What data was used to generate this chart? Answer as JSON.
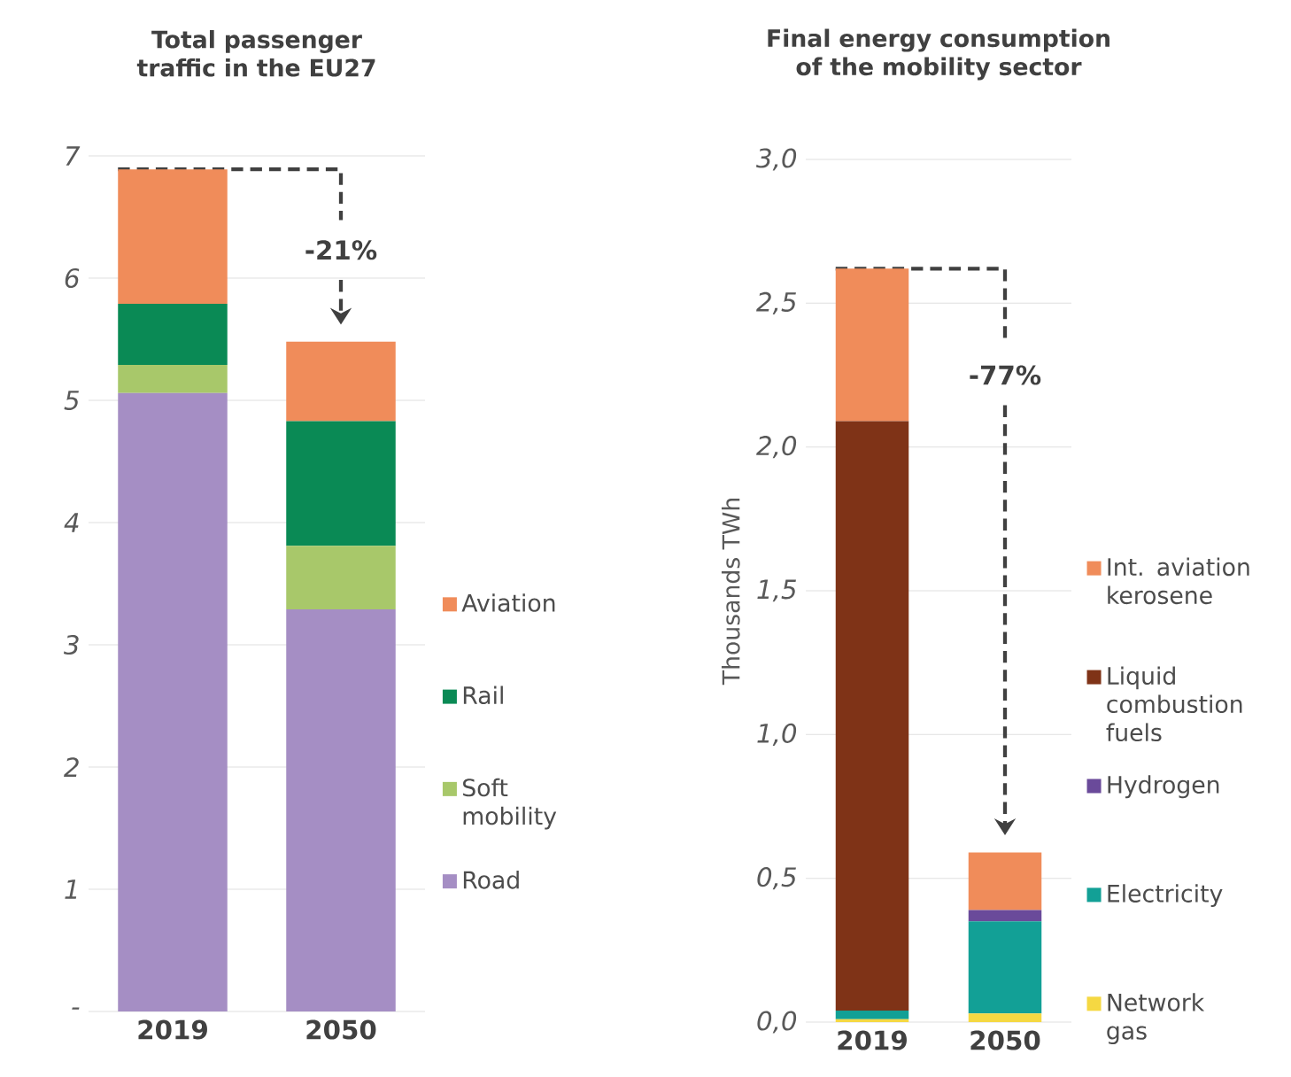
{
  "chart_data": [
    {
      "type": "bar",
      "title": "Total passenger traffic in the EU27",
      "categories": [
        "2019",
        "2050"
      ],
      "stacked": true,
      "series": [
        {
          "name": "Road",
          "color": "#a58ec4",
          "values": [
            5.06,
            3.29
          ]
        },
        {
          "name": "Soft mobility",
          "color": "#a8c86a",
          "values": [
            0.23,
            0.52
          ]
        },
        {
          "name": "Rail",
          "color": "#0a8a55",
          "values": [
            0.5,
            1.02
          ]
        },
        {
          "name": "Aviation",
          "color": "#f08c5a",
          "values": [
            1.1,
            0.65
          ]
        }
      ],
      "ylim": [
        0,
        7
      ],
      "yticks": [
        {
          "value": 0,
          "label": "-"
        },
        1,
        2,
        3,
        4,
        5,
        6,
        7
      ],
      "grid": "y",
      "legend": "right",
      "annotations": [
        "-21%"
      ]
    },
    {
      "type": "bar",
      "title": "Final energy consumption of the mobility sector",
      "ylabel": "Thousands TWh",
      "categories": [
        "2019",
        "2050"
      ],
      "stacked": true,
      "series": [
        {
          "name": "Network gas",
          "color": "#f5d842",
          "values": [
            0.01,
            0.03
          ]
        },
        {
          "name": "Electricity",
          "color": "#12a096",
          "values": [
            0.03,
            0.32
          ]
        },
        {
          "name": "Hydrogen",
          "color": "#6a4a9a",
          "values": [
            0,
            0.04
          ]
        },
        {
          "name": "Liquid combustion fuels",
          "color": "#7f3317",
          "values": [
            2.05,
            0
          ]
        },
        {
          "name": "Int. aviation kerosene",
          "color": "#f08c5a",
          "values": [
            0.53,
            0.2
          ]
        }
      ],
      "ylim": [
        0,
        3
      ],
      "yticks": [
        {
          "value": 0,
          "label": "0,0"
        },
        {
          "value": 0.5,
          "label": "0,5"
        },
        {
          "value": 1,
          "label": "1,0"
        },
        {
          "value": 1.5,
          "label": "1,5"
        },
        {
          "value": 2,
          "label": "2,0"
        },
        {
          "value": 2.5,
          "label": "2,5"
        },
        {
          "value": 3,
          "label": "3,0"
        }
      ],
      "grid": "y",
      "legend": "right",
      "annotations": [
        "-77%"
      ]
    }
  ]
}
